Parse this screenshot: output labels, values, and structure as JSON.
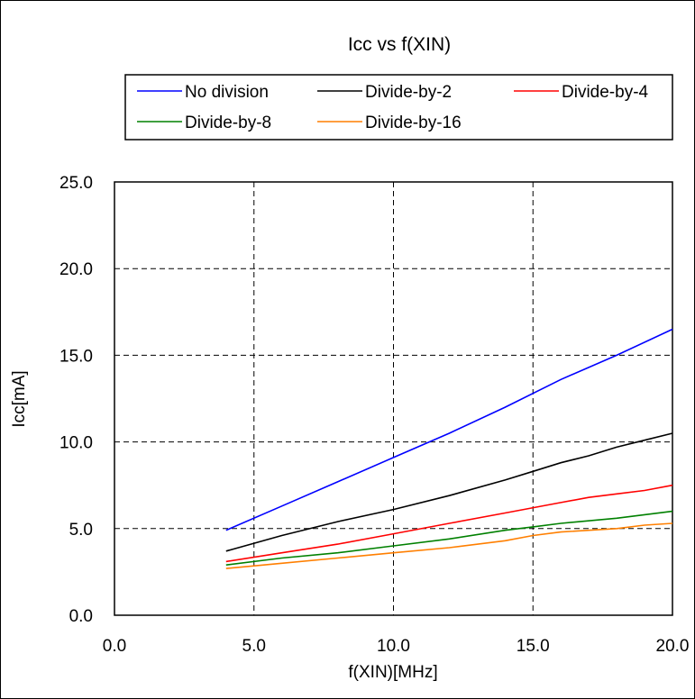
{
  "chart_data": {
    "type": "line",
    "title": "Icc vs f(XIN)",
    "xlabel": "f(XIN)[MHz]",
    "ylabel": "Icc[mA]",
    "xlim": [
      0,
      20
    ],
    "ylim": [
      0,
      25
    ],
    "xticks": [
      "0.0",
      "5.0",
      "10.0",
      "15.0",
      "20.0"
    ],
    "yticks": [
      "0.0",
      "5.0",
      "10.0",
      "15.0",
      "20.0",
      "25.0"
    ],
    "grid": true,
    "legend_position": "top",
    "series": [
      {
        "name": "No division",
        "color": "#0000ff",
        "x": [
          4.0,
          6.0,
          8.0,
          10.0,
          12.0,
          14.0,
          16.0,
          18.0,
          20.0
        ],
        "y": [
          4.9,
          6.3,
          7.7,
          9.1,
          10.5,
          12.0,
          13.6,
          15.0,
          16.5
        ]
      },
      {
        "name": "Divide-by-2",
        "color": "#000000",
        "x": [
          4.0,
          6.0,
          8.0,
          10.0,
          12.0,
          14.0,
          15.0,
          16.0,
          17.0,
          18.0,
          19.0,
          20.0
        ],
        "y": [
          3.7,
          4.6,
          5.4,
          6.1,
          6.9,
          7.8,
          8.3,
          8.8,
          9.2,
          9.7,
          10.1,
          10.5
        ]
      },
      {
        "name": "Divide-by-4",
        "color": "#ff0000",
        "x": [
          4.0,
          6.0,
          8.0,
          10.0,
          12.0,
          14.0,
          16.0,
          17.0,
          18.0,
          19.0,
          20.0
        ],
        "y": [
          3.1,
          3.6,
          4.1,
          4.7,
          5.3,
          5.9,
          6.5,
          6.8,
          7.0,
          7.2,
          7.5
        ]
      },
      {
        "name": "Divide-by-8",
        "color": "#008000",
        "x": [
          4.0,
          6.0,
          8.0,
          10.0,
          12.0,
          14.0,
          15.0,
          16.0,
          18.0,
          20.0
        ],
        "y": [
          2.9,
          3.3,
          3.6,
          4.0,
          4.4,
          4.9,
          5.1,
          5.3,
          5.6,
          6.0
        ]
      },
      {
        "name": "Divide-by-16",
        "color": "#ff7f00",
        "x": [
          4.0,
          6.0,
          8.0,
          10.0,
          12.0,
          14.0,
          15.0,
          16.0,
          18.0,
          19.0,
          20.0
        ],
        "y": [
          2.7,
          3.0,
          3.3,
          3.6,
          3.9,
          4.3,
          4.6,
          4.8,
          5.0,
          5.2,
          5.3
        ]
      }
    ]
  }
}
